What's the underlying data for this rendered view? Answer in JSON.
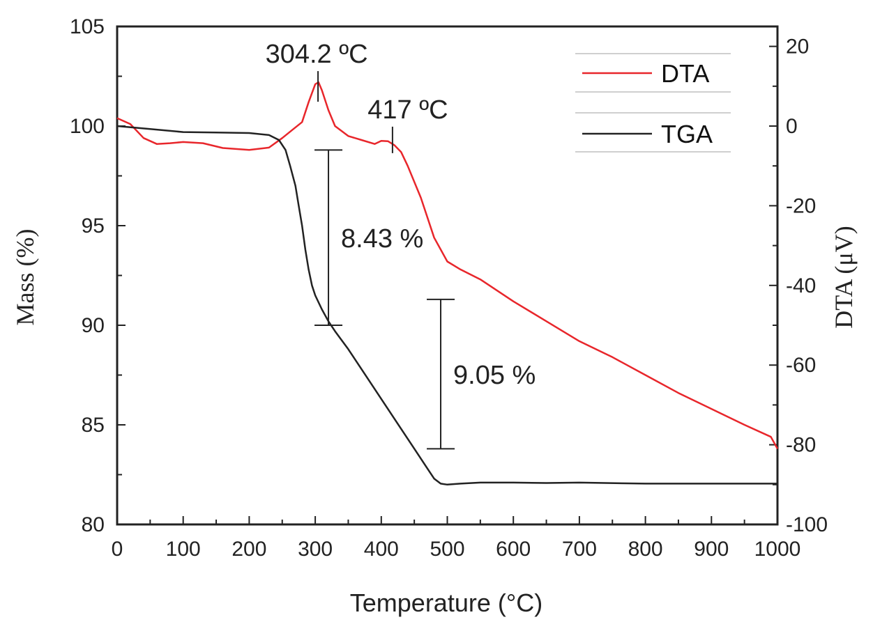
{
  "chart_data": {
    "type": "line",
    "title": "",
    "xlabel": "Temperature (°C)",
    "ylabel_left": "Mass (%)",
    "ylabel_right": "DTA (μV)",
    "xlim": [
      0,
      1000
    ],
    "ylim_left": [
      80,
      105
    ],
    "ylim_right": [
      -100,
      25
    ],
    "x_ticks": [
      0,
      100,
      200,
      300,
      400,
      500,
      600,
      700,
      800,
      900,
      1000
    ],
    "y_left_ticks": [
      80,
      85,
      90,
      95,
      100,
      105
    ],
    "y_right_ticks": [
      -100,
      -80,
      -60,
      -40,
      -20,
      0,
      20
    ],
    "grid": false,
    "legend_position": "top-right",
    "series": [
      {
        "name": "DTA",
        "axis": "right",
        "color": "#e8262b",
        "x": [
          0,
          20,
          40,
          60,
          80,
          100,
          130,
          160,
          200,
          230,
          250,
          265,
          280,
          290,
          300,
          305,
          310,
          320,
          330,
          350,
          370,
          390,
          400,
          410,
          415,
          420,
          430,
          440,
          460,
          480,
          500,
          520,
          550,
          600,
          650,
          700,
          750,
          800,
          850,
          900,
          950,
          990,
          1000
        ],
        "values": [
          2,
          0.5,
          -3,
          -4.5,
          -4.3,
          -4,
          -4.3,
          -5.5,
          -6,
          -5.4,
          -3,
          -1,
          1,
          6,
          10.5,
          11,
          9,
          4,
          0,
          -2.5,
          -3.5,
          -4.5,
          -3.7,
          -3.8,
          -4.3,
          -4.8,
          -6.5,
          -10,
          -18,
          -28,
          -34,
          -36,
          -38.5,
          -44,
          -49,
          -54,
          -58,
          -62.5,
          -67,
          -71,
          -75,
          -78,
          -81
        ]
      },
      {
        "name": "TGA",
        "axis": "left",
        "color": "#222222",
        "x": [
          0,
          50,
          100,
          150,
          200,
          230,
          245,
          255,
          262,
          270,
          275,
          280,
          285,
          290,
          295,
          300,
          310,
          320,
          330,
          350,
          370,
          400,
          430,
          450,
          470,
          480,
          490,
          500,
          520,
          550,
          600,
          650,
          700,
          800,
          900,
          1000
        ],
        "values": [
          100,
          99.85,
          99.7,
          99.68,
          99.65,
          99.55,
          99.3,
          98.8,
          98,
          97,
          96,
          95,
          93.8,
          92.8,
          92,
          91.5,
          90.8,
          90.2,
          89.7,
          88.8,
          87.8,
          86.3,
          84.8,
          83.8,
          82.8,
          82.3,
          82.05,
          82,
          82.05,
          82.1,
          82.1,
          82.08,
          82.1,
          82.05,
          82.05,
          82.05
        ]
      }
    ],
    "annotations": [
      {
        "text": "304.2 ºC",
        "x": 304.2,
        "axis": "right",
        "marker_y": 11
      },
      {
        "text": "417 ºC",
        "x": 417,
        "axis": "right",
        "marker_y": -4
      },
      {
        "text": "8.43 %",
        "axis": "left",
        "x": 320,
        "y_top": 98.8,
        "y_bottom": 90.0
      },
      {
        "text": "9.05 %",
        "axis": "left",
        "x": 490,
        "y_top": 91.3,
        "y_bottom": 83.8
      }
    ]
  }
}
